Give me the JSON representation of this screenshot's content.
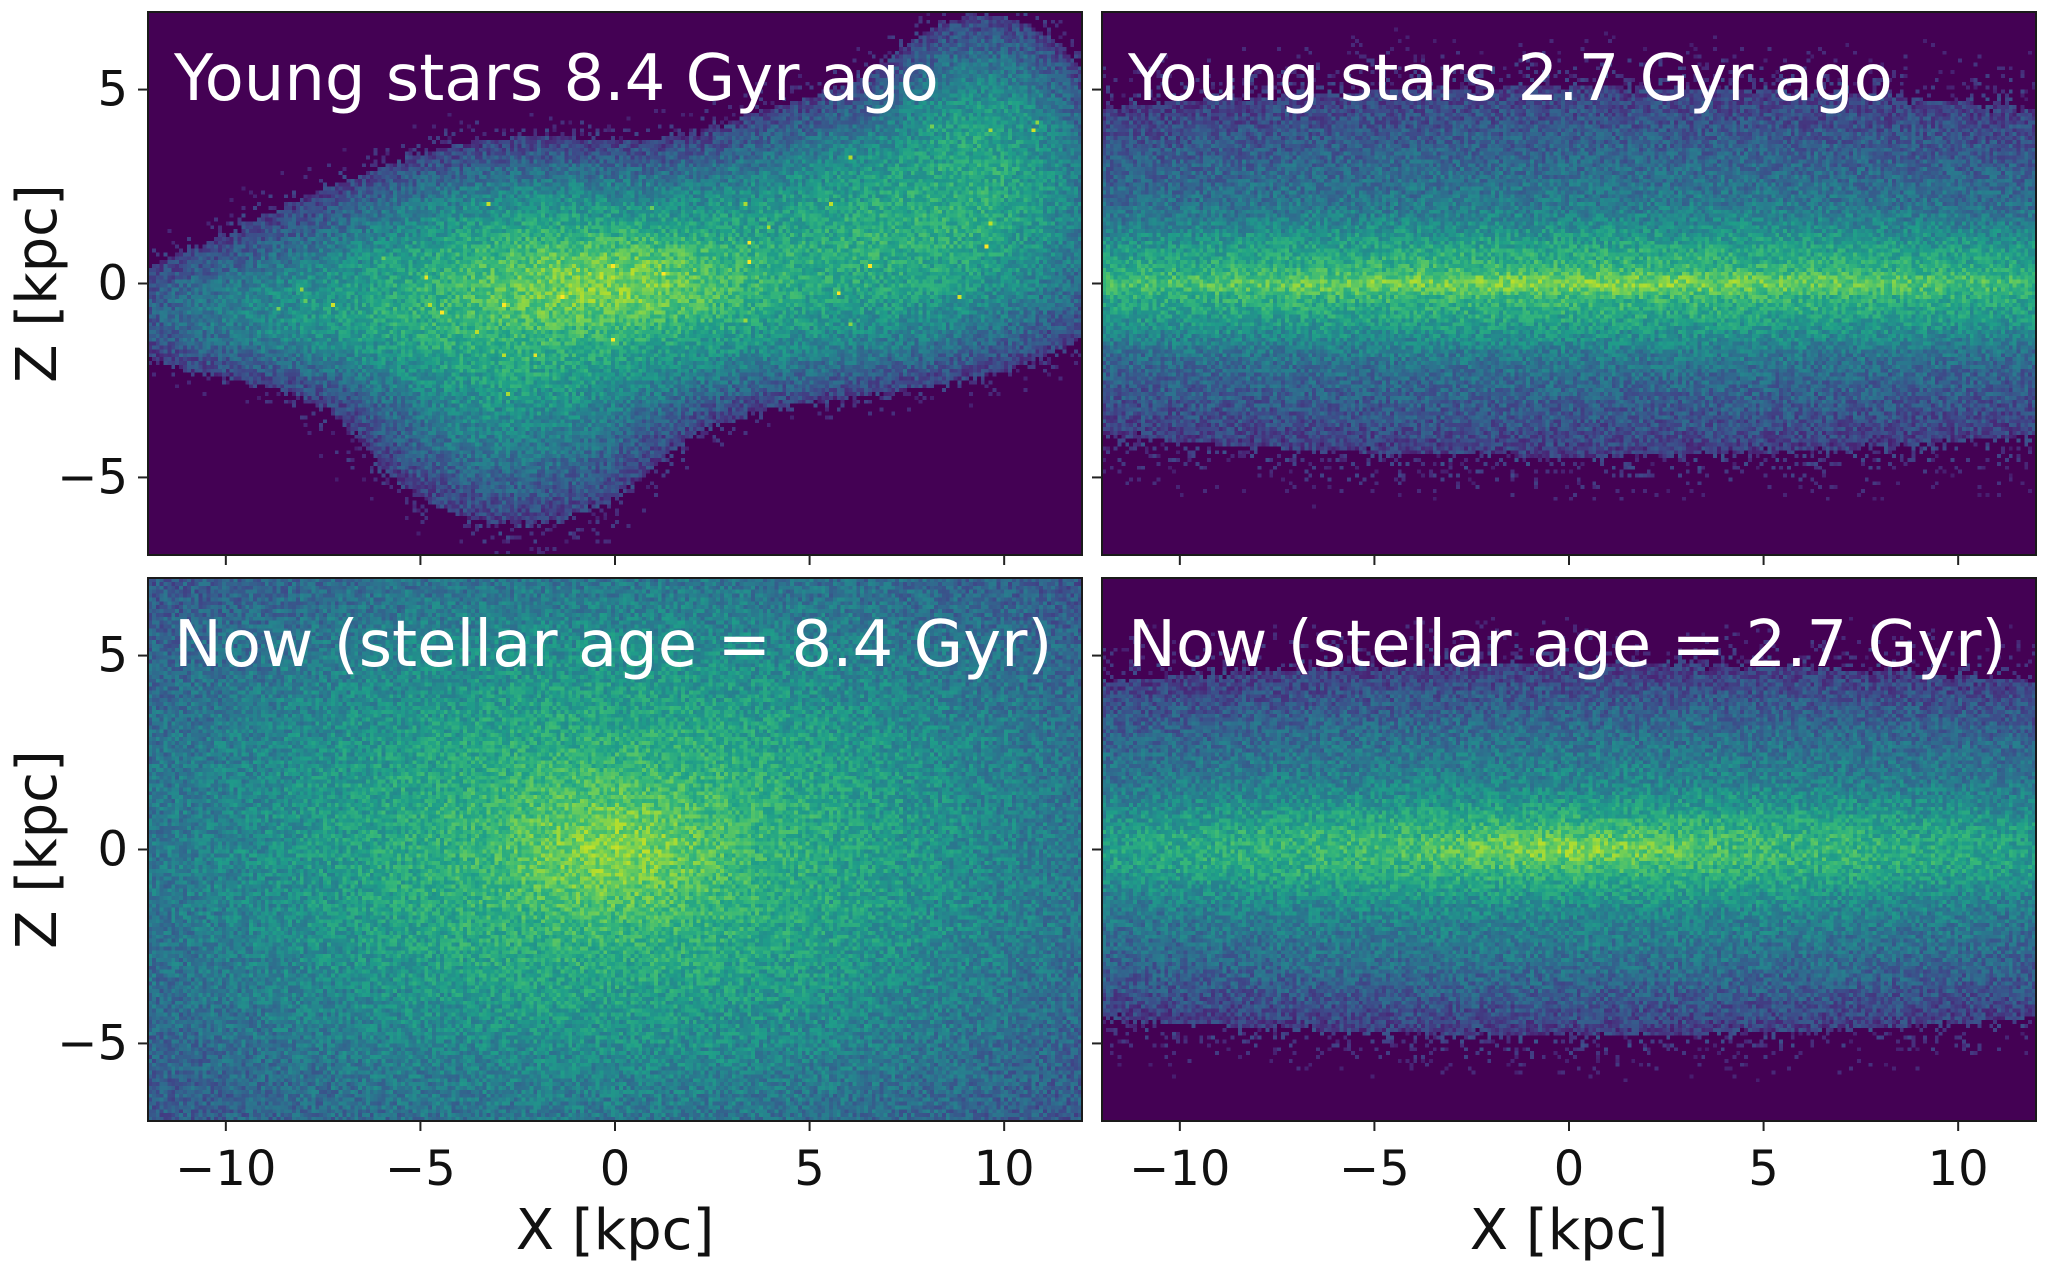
{
  "colormap": {
    "name": "viridis",
    "background": "#440154",
    "stops": [
      "#440154",
      "#482878",
      "#3e4989",
      "#31688e",
      "#26828e",
      "#1f9e89",
      "#35b779",
      "#6ece58",
      "#b5de2b",
      "#fde725"
    ]
  },
  "chart_data": [
    {
      "type": "heatmap",
      "title": "Young stars 8.4 Gyr ago",
      "xlabel": "",
      "ylabel": "Z [kpc]",
      "xlim": [
        -12,
        12
      ],
      "ylim": [
        -7,
        7
      ],
      "xticks": [
        -10,
        -5,
        0,
        5,
        10
      ],
      "yticks": [
        -5,
        0,
        5
      ],
      "xticklabels": [
        "",
        "",
        "",
        "",
        ""
      ],
      "yticklabels": [
        "−5",
        "0",
        "5"
      ],
      "colormap": "viridis",
      "structure": "disturbed",
      "components": [
        {
          "cx": 0,
          "cz": 0,
          "sx": 1.8,
          "sz": 0.6,
          "peak": 1.0
        },
        {
          "cx": 0,
          "cz": 0,
          "sx": 4.2,
          "sz": 1.4,
          "peak": 0.55
        },
        {
          "cx": 7.5,
          "cz": 1.4,
          "sx": 2.8,
          "sz": 1.6,
          "peak": 0.4
        },
        {
          "cx": -2.5,
          "cz": -1.5,
          "sx": 2.2,
          "sz": 2.2,
          "peak": 0.3
        },
        {
          "cx": -7,
          "cz": -0.8,
          "sx": 3.2,
          "sz": 0.9,
          "peak": 0.18
        },
        {
          "cx": 9.5,
          "cz": 3.5,
          "sx": 1.4,
          "sz": 1.6,
          "peak": 0.28
        }
      ]
    },
    {
      "type": "heatmap",
      "title": "Young stars 2.7 Gyr ago",
      "xlabel": "",
      "ylabel": "",
      "xlim": [
        -12,
        12
      ],
      "ylim": [
        -7,
        7
      ],
      "xticks": [
        -10,
        -5,
        0,
        5,
        10
      ],
      "yticks": [
        -5,
        0,
        5
      ],
      "xticklabels": [
        "",
        "",
        "",
        "",
        ""
      ],
      "yticklabels": [
        "",
        "",
        ""
      ],
      "colormap": "viridis",
      "structure": "thin-disk",
      "components": [
        {
          "cx": 0,
          "cz": 0,
          "sx": 7.0,
          "sz": 0.15,
          "peak": 0.95
        },
        {
          "cx": 0,
          "cz": 0,
          "sx": 13.0,
          "sz": 0.75,
          "peak": 0.55
        },
        {
          "cx": 0,
          "cz": 0.3,
          "sx": 14.0,
          "sz": 2.6,
          "peak": 0.16
        }
      ]
    },
    {
      "type": "heatmap",
      "title": "Now (stellar age = 8.4 Gyr)",
      "xlabel": "X [kpc]",
      "ylabel": "Z [kpc]",
      "xlim": [
        -12,
        12
      ],
      "ylim": [
        -7,
        7
      ],
      "xticks": [
        -10,
        -5,
        0,
        5,
        10
      ],
      "yticks": [
        -5,
        0,
        5
      ],
      "xticklabels": [
        "−10",
        "−5",
        "0",
        "5",
        "10"
      ],
      "yticklabels": [
        "−5",
        "0",
        "5"
      ],
      "colormap": "viridis",
      "structure": "thick-spheroid",
      "components": [
        {
          "cx": 0,
          "cz": 0,
          "sx": 1.5,
          "sz": 0.9,
          "peak": 1.0
        },
        {
          "cx": 0,
          "cz": 0,
          "sx": 4.5,
          "sz": 2.6,
          "peak": 0.55
        },
        {
          "cx": 0,
          "cz": 0,
          "sx": 10.0,
          "sz": 6.0,
          "peak": 0.22
        }
      ]
    },
    {
      "type": "heatmap",
      "title": "Now (stellar age = 2.7 Gyr)",
      "xlabel": "X [kpc]",
      "ylabel": "",
      "xlim": [
        -12,
        12
      ],
      "ylim": [
        -7,
        7
      ],
      "xticks": [
        -10,
        -5,
        0,
        5,
        10
      ],
      "yticks": [
        -5,
        0,
        5
      ],
      "xticklabels": [
        "−10",
        "−5",
        "0",
        "5",
        "10"
      ],
      "yticklabels": [
        "",
        "",
        ""
      ],
      "colormap": "viridis",
      "structure": "disk",
      "components": [
        {
          "cx": 0,
          "cz": 0,
          "sx": 1.8,
          "sz": 0.22,
          "peak": 0.95
        },
        {
          "cx": 0,
          "cz": 0,
          "sx": 8.0,
          "sz": 0.65,
          "peak": 0.6
        },
        {
          "cx": 0,
          "cz": 0,
          "sx": 14.0,
          "sz": 2.4,
          "peak": 0.22
        }
      ]
    }
  ]
}
